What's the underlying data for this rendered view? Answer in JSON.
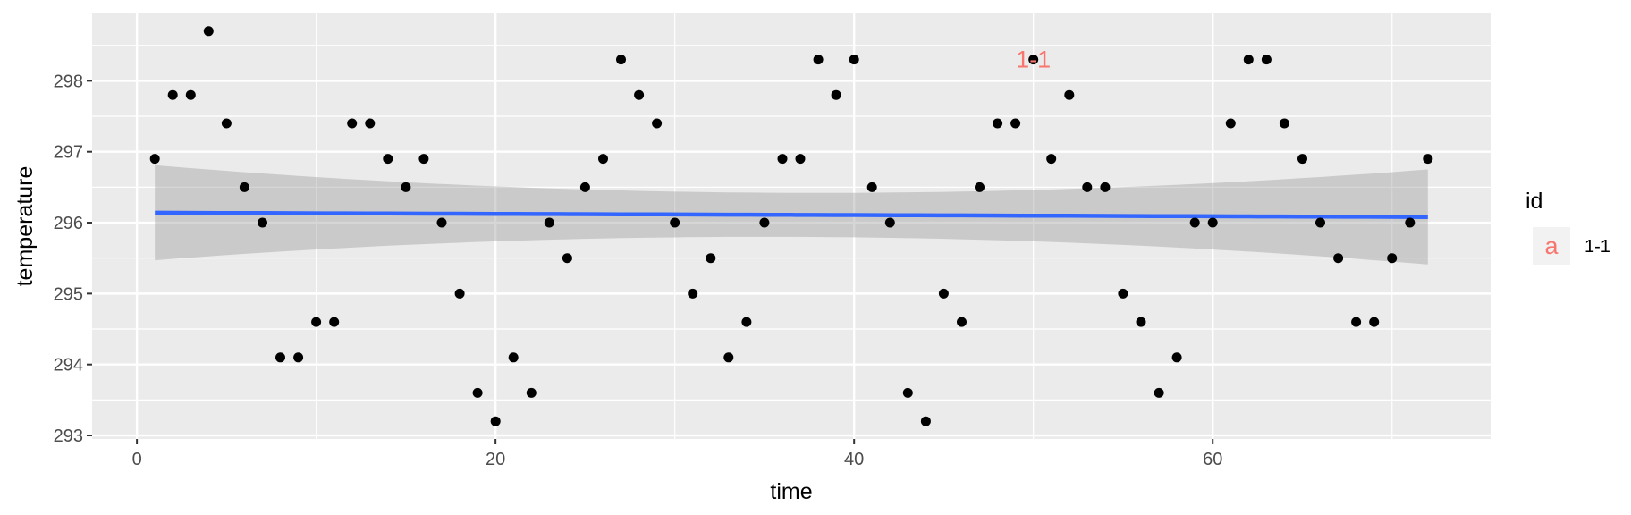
{
  "chart_data": {
    "type": "scatter",
    "xlabel": "time",
    "ylabel": "temperature",
    "xlim": [
      -2.5,
      75.5
    ],
    "ylim": [
      292.95,
      298.95
    ],
    "x_ticks": [
      0,
      20,
      40,
      60
    ],
    "x_tick_labels": [
      "0",
      "20",
      "40",
      "60"
    ],
    "y_ticks": [
      293,
      294,
      295,
      296,
      297,
      298
    ],
    "y_tick_labels": [
      "293",
      "294",
      "295",
      "296",
      "297",
      "298"
    ],
    "grid": true,
    "legend_position": "right",
    "legend": {
      "title": "id",
      "items": [
        {
          "key_glyph": "a",
          "label": "1-1",
          "color": "#F8766D"
        }
      ]
    },
    "annotation": {
      "text": "1-1",
      "x": 50,
      "y": 298.3,
      "color": "#F8766D"
    },
    "series": [
      {
        "type": "scatter",
        "color": "#000000",
        "x": [
          1,
          2,
          3,
          4,
          5,
          6,
          7,
          8,
          9,
          10,
          11,
          12,
          13,
          14,
          15,
          16,
          17,
          18,
          19,
          20,
          21,
          22,
          23,
          24,
          25,
          26,
          27,
          28,
          29,
          30,
          31,
          32,
          33,
          34,
          35,
          36,
          37,
          38,
          39,
          40,
          41,
          42,
          43,
          44,
          45,
          46,
          47,
          48,
          49,
          50,
          51,
          52,
          53,
          54,
          55,
          56,
          57,
          58,
          59,
          60,
          61,
          62,
          63,
          64,
          65,
          66,
          67,
          68,
          69,
          70,
          71,
          72
        ],
        "y": [
          296.9,
          297.8,
          297.8,
          298.7,
          297.4,
          296.5,
          296.0,
          294.1,
          294.1,
          294.6,
          294.6,
          297.4,
          297.4,
          296.9,
          296.5,
          296.9,
          296.0,
          295.0,
          293.6,
          293.2,
          294.1,
          293.6,
          296.0,
          295.5,
          296.5,
          296.9,
          298.3,
          297.8,
          297.4,
          296.0,
          295.0,
          295.5,
          294.1,
          294.6,
          296.0,
          296.9,
          296.9,
          298.3,
          297.8,
          298.3,
          296.5,
          296.0,
          293.6,
          293.2,
          295.0,
          294.6,
          296.5,
          297.4,
          297.4,
          298.3,
          296.9,
          297.8,
          296.5,
          296.5,
          295.0,
          294.6,
          293.6,
          294.1,
          296.0,
          296.0,
          297.4,
          298.3,
          298.3,
          297.4,
          296.9,
          296.0,
          295.5,
          294.6,
          294.6,
          295.5,
          296.0,
          296.9
        ]
      }
    ],
    "smooth": {
      "method": "lm",
      "color": "#3366FF",
      "ribbon_color": "#999999",
      "x": [
        1,
        36.5,
        72
      ],
      "y": [
        296.14,
        296.11,
        296.08
      ],
      "ymin": [
        295.47,
        295.8,
        295.41
      ],
      "ymax": [
        296.81,
        296.42,
        296.75
      ]
    },
    "colors": {
      "panel_background": "#EBEBEB",
      "grid_major": "#FFFFFF",
      "points": "#000000",
      "fit_line": "#3366FF",
      "ribbon": "#999999",
      "annotation": "#F8766D"
    }
  }
}
